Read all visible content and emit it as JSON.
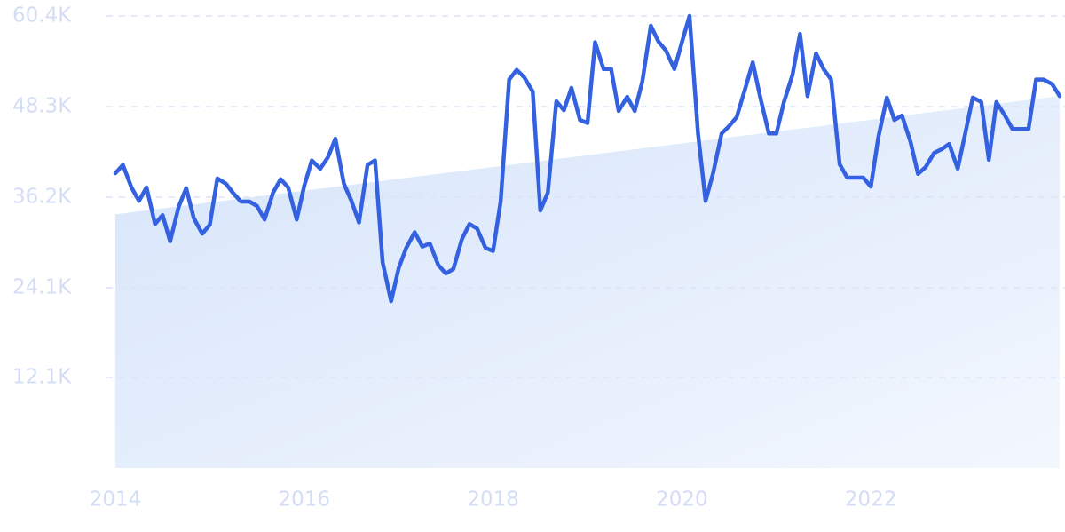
{
  "chart_data": {
    "type": "line",
    "x": [
      2014,
      2014.08,
      2014.17,
      2014.25,
      2014.33,
      2014.42,
      2014.5,
      2014.58,
      2014.67,
      2014.75,
      2014.83,
      2014.92,
      2015,
      2015.08,
      2015.17,
      2015.25,
      2015.33,
      2015.42,
      2015.5,
      2015.58,
      2015.67,
      2015.75,
      2015.83,
      2015.92,
      2016,
      2016.08,
      2016.17,
      2016.25,
      2016.33,
      2016.42,
      2016.5,
      2016.58,
      2016.67,
      2016.75,
      2016.83,
      2016.92,
      2017,
      2017.08,
      2017.17,
      2017.25,
      2017.33,
      2017.42,
      2017.5,
      2017.58,
      2017.67,
      2017.75,
      2017.83,
      2017.92,
      2018,
      2018.08,
      2018.17,
      2018.25,
      2018.33,
      2018.42,
      2018.5,
      2018.58,
      2018.67,
      2018.75,
      2018.83,
      2018.92,
      2019,
      2019.08,
      2019.17,
      2019.25,
      2019.33,
      2019.42,
      2019.5,
      2019.58,
      2019.67,
      2019.75,
      2019.83,
      2019.92,
      2020,
      2020.08,
      2020.17,
      2020.25,
      2020.33,
      2020.42,
      2020.5,
      2020.58,
      2020.67,
      2020.75,
      2020.83,
      2020.92,
      2021,
      2021.08,
      2021.17,
      2021.25,
      2021.33,
      2021.42,
      2021.5,
      2021.58,
      2021.67,
      2021.75,
      2021.83,
      2021.92,
      2022,
      2022.08,
      2022.17,
      2022.25,
      2022.33,
      2022.42,
      2022.5,
      2022.58,
      2022.67,
      2022.75,
      2022.83,
      2022.92,
      2023,
      2023.08,
      2023.17,
      2023.25,
      2023.33,
      2023.42,
      2023.5,
      2023.58,
      2023.67,
      2023.75,
      2023.83,
      2023.92,
      2024
    ],
    "series": [
      {
        "color": "#3461e0",
        "values": [
          39400,
          40500,
          37500,
          35700,
          37500,
          32600,
          33800,
          30300,
          34900,
          37400,
          33400,
          31300,
          32500,
          38700,
          38000,
          36700,
          35600,
          35600,
          35000,
          33200,
          36800,
          38600,
          37500,
          33200,
          37700,
          41100,
          40000,
          41500,
          44000,
          38000,
          35700,
          32800,
          40500,
          41100,
          27500,
          22300,
          26700,
          29400,
          31500,
          29600,
          30000,
          27100,
          26000,
          26600,
          30600,
          32600,
          32000,
          29400,
          29000,
          35600,
          51900,
          53200,
          52200,
          50300,
          34400,
          36800,
          49000,
          47800,
          50800,
          46500,
          46100,
          56900,
          53300,
          53300,
          47700,
          49600,
          47700,
          51600,
          59100,
          57000,
          55800,
          53300,
          56900,
          60400,
          44700,
          35700,
          39400,
          44700,
          45700,
          46900,
          50700,
          54200,
          49500,
          44700,
          44700,
          48900,
          52500,
          58000,
          49700,
          55400,
          53300,
          51900,
          40600,
          38800,
          38800,
          38800,
          37600,
          44200,
          49500,
          46500,
          47100,
          43600,
          39300,
          40200,
          42100,
          42600,
          43300,
          40000,
          44700,
          49500,
          48900,
          41200,
          48900,
          47100,
          45300,
          45300,
          45300,
          51900,
          51900,
          51300,
          49700
        ]
      }
    ],
    "trend": {
      "color": "#dbe8fb",
      "x": [
        2014,
        2024
      ],
      "values": [
        33900,
        49700
      ]
    },
    "xlim": [
      2014,
      2024
    ],
    "xticks": [
      2014,
      2016,
      2018,
      2020,
      2022
    ],
    "ylim": [
      0,
      60400
    ],
    "yticks": [
      {
        "value": 12100,
        "label": "12.1K"
      },
      {
        "value": 24100,
        "label": "24.1K"
      },
      {
        "value": 36200,
        "label": "36.2K"
      },
      {
        "value": 48300,
        "label": "48.3K"
      },
      {
        "value": 60400,
        "label": "60.4K"
      }
    ],
    "grid": true
  }
}
